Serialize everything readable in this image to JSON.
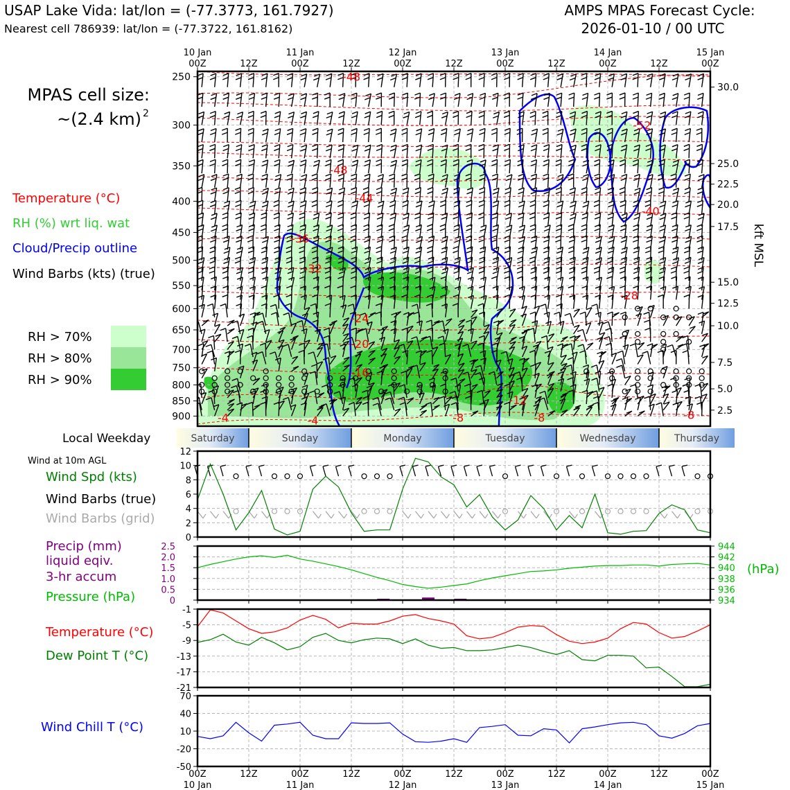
{
  "header": {
    "title_left": "USAP Lake Vida: lat/lon = (-77.3773, 161.7927)",
    "subtitle_left": "Nearest cell 786939: lat/lon = (-77.3722, 161.8162)",
    "title_right_1": "AMPS MPAS Forecast Cycle:",
    "title_right_2": "2026-01-10 / 00 UTC"
  },
  "side_panel": {
    "cell_size_1": "MPAS cell size:",
    "cell_size_2": "~(2.4 km)",
    "cell_size_sup": "2",
    "legend_temperature": "Temperature (°C)",
    "legend_rh": "RH (%) wrt liq. wat",
    "legend_cloud": "Cloud/Precip outline",
    "legend_barbs": "Wind Barbs (kts) (true)",
    "rh_legend": [
      {
        "label": "RH > 70%",
        "color": "#ccffcc"
      },
      {
        "label": "RH > 80%",
        "color": "#99e699"
      },
      {
        "label": "RH > 90%",
        "color": "#33cc33"
      }
    ],
    "weekday_label": "Local Weekday",
    "wind10m_label": "Wind at 10m AGL",
    "lbl_wind_spd": "Wind Spd (kts)",
    "lbl_wind_true": "Wind Barbs (true)",
    "lbl_wind_grid": "Wind Barbs (grid)",
    "lbl_precip_1": "Precip (mm)",
    "lbl_precip_2": "liquid eqiv.",
    "lbl_precip_3": "3-hr accum",
    "lbl_pressure": "Pressure (hPa)",
    "lbl_pressure_unit": "(hPa)",
    "lbl_temp": "Temperature (°C)",
    "lbl_dewpt": "Dew Point T (°C)",
    "lbl_windchill": "Wind Chill T (°C)",
    "kft_label": "kft MSL"
  },
  "colors": {
    "temperature": "#ff0000",
    "rh_label": "#33cc33",
    "cloud": "#0000ee",
    "wind_speed": "#008000",
    "grid_barbs": "#aaaaaa",
    "precip": "#800080",
    "pressure": "#00bb00",
    "dewpoint": "#008000",
    "windchill": "#0000ff"
  },
  "chart_data": [
    {
      "type": "heatmap",
      "name": "cross-section",
      "x_ticks_top": [
        {
          "day": "10 Jan",
          "hour": "00Z"
        },
        {
          "day": "",
          "hour": "12Z"
        },
        {
          "day": "11 Jan",
          "hour": "00Z"
        },
        {
          "day": "",
          "hour": "12Z"
        },
        {
          "day": "12 Jan",
          "hour": "00Z"
        },
        {
          "day": "",
          "hour": "12Z"
        },
        {
          "day": "13 Jan",
          "hour": "00Z"
        },
        {
          "day": "",
          "hour": "12Z"
        },
        {
          "day": "14 Jan",
          "hour": "00Z"
        },
        {
          "day": "",
          "hour": "12Z"
        },
        {
          "day": "15 Jan",
          "hour": "00Z"
        }
      ],
      "xlim_hours": [
        0,
        120
      ],
      "ylim_hpa": [
        935,
        245
      ],
      "y_ticks_hpa": [
        250,
        300,
        350,
        400,
        450,
        500,
        550,
        600,
        650,
        700,
        750,
        800,
        850,
        900
      ],
      "y_ticks_right_kft": [
        {
          "label": "30.0",
          "hpa": 260
        },
        {
          "label": "25.0",
          "hpa": 347
        },
        {
          "label": "22.5",
          "hpa": 375
        },
        {
          "label": "20.0",
          "hpa": 405
        },
        {
          "label": "17.5",
          "hpa": 440
        },
        {
          "label": "15.0",
          "hpa": 543
        },
        {
          "label": "12.5",
          "hpa": 588
        },
        {
          "label": "10.0",
          "hpa": 640
        },
        {
          "label": "7.5",
          "hpa": 735
        },
        {
          "label": "5.0",
          "hpa": 812
        },
        {
          "label": "2.5",
          "hpa": 880
        }
      ],
      "temperature_contour_labels": [
        {
          "text": "-48",
          "hour": 36,
          "hpa": 250
        },
        {
          "text": "-52",
          "hour": 104,
          "hpa": 300
        },
        {
          "text": "-48",
          "hour": 33,
          "hpa": 355
        },
        {
          "text": "-44",
          "hour": 39,
          "hpa": 395
        },
        {
          "text": "-40",
          "hour": 106,
          "hpa": 415
        },
        {
          "text": "-36",
          "hour": 24,
          "hpa": 460
        },
        {
          "text": "-32",
          "hour": 27,
          "hpa": 515
        },
        {
          "text": "-28",
          "hour": 101,
          "hpa": 570
        },
        {
          "text": "-24",
          "hour": 38,
          "hpa": 622
        },
        {
          "text": "-20",
          "hour": 38,
          "hpa": 685
        },
        {
          "text": "-16",
          "hour": 38,
          "hpa": 762
        },
        {
          "text": "-12",
          "hour": 75,
          "hpa": 846
        },
        {
          "text": "-8",
          "hour": 115,
          "hpa": 895
        },
        {
          "text": "-4",
          "hour": 6,
          "hpa": 905
        },
        {
          "text": "-4",
          "hour": 27,
          "hpa": 915
        },
        {
          "text": "-8",
          "hour": 61,
          "hpa": 905
        },
        {
          "text": "-8",
          "hour": 80,
          "hpa": 905
        }
      ]
    },
    {
      "type": "line",
      "name": "10m wind speed",
      "xlim_hours": [
        0,
        120
      ],
      "ylim": [
        0,
        12
      ],
      "y_ticks": [
        0,
        2,
        4,
        6,
        8,
        10,
        12
      ],
      "x_hours": [
        0,
        3,
        6,
        9,
        12,
        15,
        18,
        21,
        24,
        27,
        30,
        33,
        36,
        39,
        42,
        45,
        48,
        51,
        54,
        57,
        60,
        63,
        66,
        69,
        72,
        75,
        78,
        81,
        84,
        87,
        90,
        93,
        96,
        99,
        102,
        105,
        108,
        111,
        114,
        117,
        120
      ],
      "values": [
        5.2,
        10.2,
        6.0,
        1.0,
        3.4,
        6.5,
        1.1,
        0.3,
        0.8,
        6.7,
        8.5,
        7.0,
        3.4,
        0.8,
        1.0,
        1.0,
        6.7,
        11.0,
        10.5,
        8.4,
        7.3,
        4.2,
        5.9,
        2.8,
        1.0,
        2.4,
        5.8,
        4.0,
        1.0,
        3.0,
        1.3,
        6.0,
        0.6,
        0.4,
        0.8,
        0.9,
        3.3,
        4.5,
        3.8,
        1.0,
        0.6
      ],
      "true_barbs_y": 8.5,
      "grid_barbs_y": 3.6
    },
    {
      "type": "line",
      "name": "pressure and precip",
      "xlim_hours": [
        0,
        120
      ],
      "precip_ylim": [
        0,
        2.5
      ],
      "precip_ticks": [
        "0",
        "0.5",
        "1.0",
        "1.5",
        "2.0",
        "2.5"
      ],
      "pressure_ylim": [
        934,
        944
      ],
      "pressure_ticks": [
        934,
        936,
        938,
        940,
        942,
        944
      ],
      "precip_bars": [
        {
          "hour": 43.5,
          "value": 0.06
        },
        {
          "hour": 54,
          "value": 0.12
        },
        {
          "hour": 61.5,
          "value": 0.05
        }
      ],
      "x_hours": [
        0,
        3,
        6,
        9,
        12,
        15,
        18,
        21,
        24,
        27,
        30,
        33,
        36,
        39,
        42,
        45,
        48,
        51,
        54,
        57,
        60,
        63,
        66,
        69,
        72,
        75,
        78,
        81,
        84,
        87,
        90,
        93,
        96,
        99,
        102,
        105,
        108,
        111,
        114,
        117,
        120
      ],
      "pressure": [
        940.0,
        940.6,
        941.1,
        941.6,
        942.0,
        942.2,
        941.9,
        942.3,
        941.6,
        941.2,
        940.7,
        940.2,
        939.6,
        938.9,
        938.2,
        937.6,
        936.9,
        936.5,
        936.2,
        936.4,
        936.7,
        937.0,
        937.6,
        938.1,
        938.5,
        938.9,
        939.3,
        939.4,
        939.6,
        939.9,
        940.1,
        940.3,
        940.4,
        940.4,
        940.5,
        940.5,
        940.3,
        940.6,
        940.7,
        940.8,
        940.5
      ]
    },
    {
      "type": "line",
      "name": "temperature and dew point",
      "xlim_hours": [
        0,
        120
      ],
      "ylim": [
        -21,
        -1
      ],
      "y_ticks": [
        -1,
        -5,
        -9,
        -13,
        -17,
        -21
      ],
      "x_hours": [
        0,
        3,
        6,
        9,
        12,
        15,
        18,
        21,
        24,
        27,
        30,
        33,
        36,
        39,
        42,
        45,
        48,
        51,
        54,
        57,
        60,
        63,
        66,
        69,
        72,
        75,
        78,
        81,
        84,
        87,
        90,
        93,
        96,
        99,
        102,
        105,
        108,
        111,
        114,
        117,
        120
      ],
      "series": [
        {
          "name": "Temperature",
          "values": [
            -5.5,
            -1.2,
            -2.0,
            -4.0,
            -6.0,
            -7.2,
            -6.8,
            -5.8,
            -3.8,
            -2.6,
            -3.6,
            -5.8,
            -4.6,
            -4.8,
            -4.8,
            -4.0,
            -2.8,
            -2.4,
            -3.4,
            -4.0,
            -4.8,
            -7.8,
            -8.6,
            -8.2,
            -7.0,
            -5.6,
            -5.2,
            -5.4,
            -7.5,
            -9.2,
            -9.8,
            -9.4,
            -8.4,
            -6.0,
            -4.4,
            -4.8,
            -7.0,
            -8.4,
            -8.0,
            -6.6,
            -5.0
          ]
        },
        {
          "name": "Dew Point",
          "values": [
            -9.5,
            -8.8,
            -7.4,
            -9.4,
            -10.2,
            -8.2,
            -9.6,
            -11.4,
            -10.6,
            -8.2,
            -7.2,
            -9.0,
            -9.6,
            -8.8,
            -8.4,
            -8.6,
            -9.8,
            -8.6,
            -10.2,
            -11.0,
            -10.8,
            -11.6,
            -11.6,
            -11.4,
            -10.8,
            -10.2,
            -10.8,
            -11.8,
            -12.6,
            -11.6,
            -13.9,
            -14.2,
            -12.8,
            -12.8,
            -13.0,
            -16.0,
            -15.8,
            -18.2,
            -20.8,
            -20.8,
            -20.2
          ]
        }
      ]
    },
    {
      "type": "line",
      "name": "wind chill",
      "xlim_hours": [
        0,
        120
      ],
      "ylim": [
        -50,
        70
      ],
      "y_ticks": [
        -50,
        -20,
        10,
        40,
        70
      ],
      "x_hours": [
        0,
        3,
        6,
        9,
        12,
        15,
        18,
        21,
        24,
        27,
        30,
        33,
        36,
        39,
        42,
        45,
        48,
        51,
        54,
        57,
        60,
        63,
        66,
        69,
        72,
        75,
        78,
        81,
        84,
        87,
        90,
        93,
        96,
        99,
        102,
        105,
        108,
        111,
        114,
        117,
        120
      ],
      "values": [
        1,
        -3,
        2,
        25,
        7,
        -7,
        20,
        22,
        25,
        3,
        -3,
        -3,
        24,
        23,
        23,
        24,
        5,
        -8,
        -9,
        -7,
        -3,
        -9,
        16,
        18,
        21,
        3,
        2,
        14,
        12,
        -10,
        14,
        17,
        21,
        24,
        25,
        21,
        2,
        -2,
        6,
        19,
        23
      ]
    }
  ],
  "x_ticks_bottom": [
    {
      "day": "10 Jan",
      "hour": "00Z"
    },
    {
      "day": "",
      "hour": "12Z"
    },
    {
      "day": "11 Jan",
      "hour": "00Z"
    },
    {
      "day": "",
      "hour": "12Z"
    },
    {
      "day": "12 Jan",
      "hour": "00Z"
    },
    {
      "day": "",
      "hour": "12Z"
    },
    {
      "day": "13 Jan",
      "hour": "00Z"
    },
    {
      "day": "",
      "hour": "12Z"
    },
    {
      "day": "14 Jan",
      "hour": "00Z"
    },
    {
      "day": "",
      "hour": "12Z"
    },
    {
      "day": "15 Jan",
      "hour": "00Z"
    }
  ],
  "weekdays": [
    {
      "label": "Saturday",
      "start_hour": -6,
      "end_hour": 12
    },
    {
      "label": "Sunday",
      "start_hour": 12,
      "end_hour": 36
    },
    {
      "label": "Monday",
      "start_hour": 36,
      "end_hour": 60
    },
    {
      "label": "Tuesday",
      "start_hour": 60,
      "end_hour": 84
    },
    {
      "label": "Wednesday",
      "start_hour": 84,
      "end_hour": 108
    },
    {
      "label": "Thursday",
      "start_hour": 108,
      "end_hour": 126
    }
  ]
}
